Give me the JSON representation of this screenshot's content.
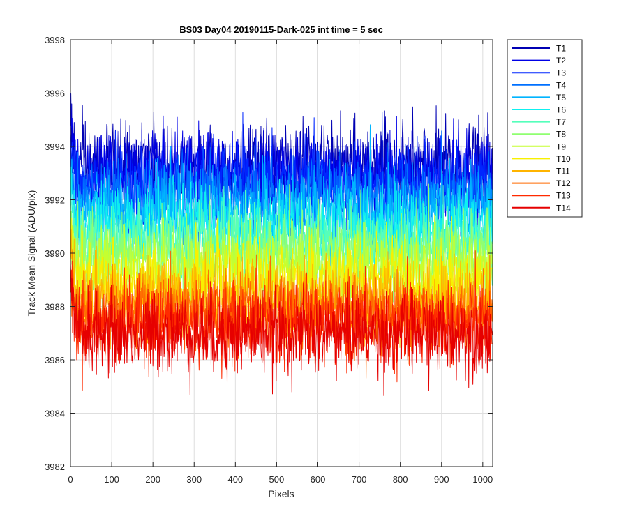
{
  "chart_data": {
    "type": "line",
    "title": "BS03 Day04 20190115-Dark-025 int time = 5 sec",
    "xlabel": "Pixels",
    "ylabel": "Track Mean Signal (ADU/pix)",
    "xlim": [
      0,
      1024
    ],
    "ylim": [
      3982,
      3998
    ],
    "xticks": [
      0,
      100,
      200,
      300,
      400,
      500,
      600,
      700,
      800,
      900,
      1000
    ],
    "yticks": [
      3982,
      3984,
      3986,
      3988,
      3990,
      3992,
      3994,
      3996,
      3998
    ],
    "grid": true,
    "legend_position": "outside-right",
    "n_points": 1024,
    "series": [
      {
        "name": "T1",
        "color": "#0000b3",
        "mean": 3993.3,
        "spread": 0.75
      },
      {
        "name": "T2",
        "color": "#0000e6",
        "mean": 3993.0,
        "spread": 0.75
      },
      {
        "name": "T3",
        "color": "#0026ff",
        "mean": 3992.6,
        "spread": 0.75
      },
      {
        "name": "T4",
        "color": "#0070ff",
        "mean": 3992.1,
        "spread": 0.75
      },
      {
        "name": "T5",
        "color": "#00b4ff",
        "mean": 3991.6,
        "spread": 0.75
      },
      {
        "name": "T6",
        "color": "#0ff0f0",
        "mean": 3991.0,
        "spread": 0.75
      },
      {
        "name": "T7",
        "color": "#55ffbb",
        "mean": 3990.4,
        "spread": 0.75
      },
      {
        "name": "T8",
        "color": "#8fff70",
        "mean": 3989.9,
        "spread": 0.75
      },
      {
        "name": "T9",
        "color": "#c5ff30",
        "mean": 3989.4,
        "spread": 0.75
      },
      {
        "name": "T10",
        "color": "#f8f000",
        "mean": 3988.9,
        "spread": 0.75
      },
      {
        "name": "T11",
        "color": "#ffb400",
        "mean": 3988.2,
        "spread": 0.75
      },
      {
        "name": "T12",
        "color": "#ff6a00",
        "mean": 3987.8,
        "spread": 0.75
      },
      {
        "name": "T13",
        "color": "#ff2a00",
        "mean": 3987.4,
        "spread": 0.75
      },
      {
        "name": "T14",
        "color": "#e60000",
        "mean": 3987.0,
        "spread": 0.75
      }
    ]
  }
}
